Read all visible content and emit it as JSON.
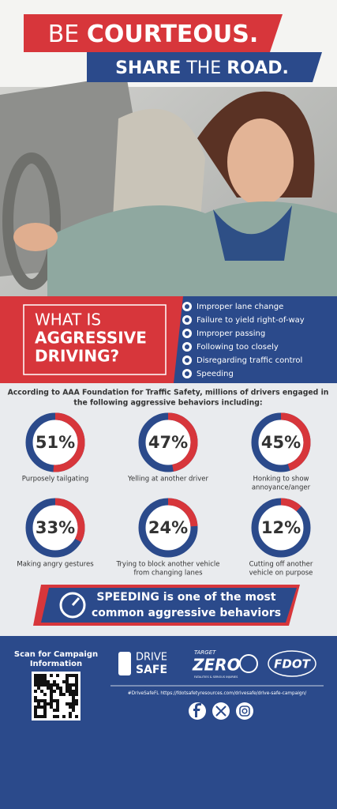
{
  "header": {
    "line1_a": "BE",
    "line1_b": "COURTEOUS.",
    "line2_a": "SHARE",
    "line2_b": "THE",
    "line2_c": "ROAD."
  },
  "definition": {
    "heading_1": "WHAT IS",
    "heading_2": "AGGRESSIVE",
    "heading_3": "DRIVING?",
    "items": [
      "Improper lane change",
      "Failure to yield right-of-way",
      "Improper passing",
      "Following too closely",
      "Disregarding traffic control",
      "Speeding"
    ]
  },
  "intro": [
    "According to AAA Foundation for Traffic Safety, millions of drivers engaged in",
    "the following aggressive behaviors including:"
  ],
  "stats": [
    {
      "value": 51,
      "value_label": "51%",
      "caption": [
        "Purposely tailgating"
      ]
    },
    {
      "value": 47,
      "value_label": "47%",
      "caption": [
        "Yelling at another driver"
      ]
    },
    {
      "value": 45,
      "value_label": "45%",
      "caption": [
        "Honking to show",
        "annoyance/anger"
      ]
    },
    {
      "value": 33,
      "value_label": "33%",
      "caption": [
        "Making angry gestures"
      ]
    },
    {
      "value": 24,
      "value_label": "24%",
      "caption": [
        "Trying to block another vehicle",
        "from changing lanes"
      ]
    },
    {
      "value": 12,
      "value_label": "12%",
      "caption": [
        "Cutting off another",
        "vehicle on purpose"
      ]
    }
  ],
  "speeding": {
    "bold": "SPEEDING",
    "line1_rest": "is one of the most",
    "line2": "common aggressive behaviors"
  },
  "footer": {
    "scan_1": "Scan for Campaign",
    "scan_2": "Information",
    "drive": "DRIVE",
    "safe": "SAFE",
    "target": "TARGET",
    "zero": "ZERO",
    "zero_sub": "FATALITIES & SERIOUS INJURIES",
    "fdot": "FDOT",
    "hashtag": "#DriveSafeFL",
    "url": "https://fdotsafetyresources.com/drivesafe/drive-safe-campaign/"
  }
}
